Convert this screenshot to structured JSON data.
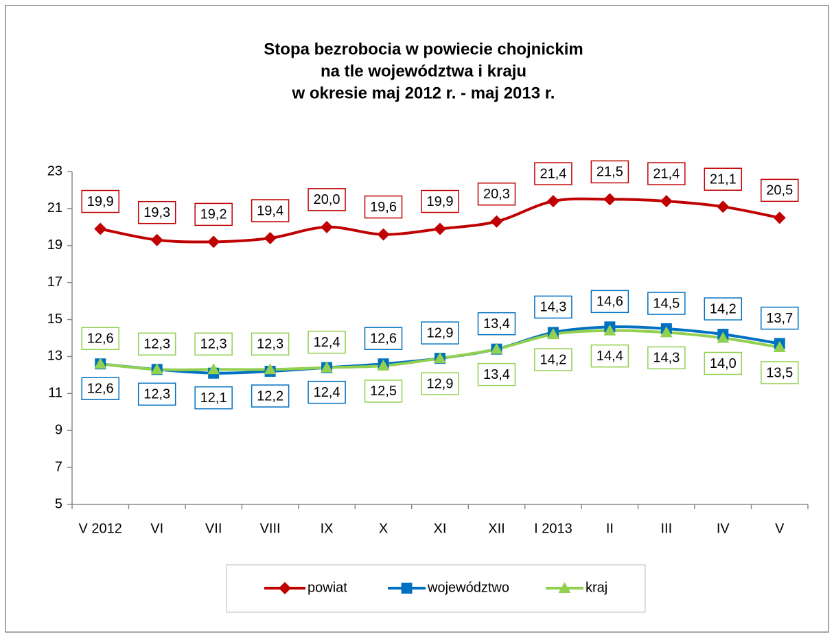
{
  "chart_data": {
    "type": "line",
    "title": [
      "Stopa bezrobocia w powiecie chojnickim",
      "na tle województwa i kraju",
      "w okresie maj 2012 r. - maj 2013 r."
    ],
    "categories": [
      "V 2012",
      "VI",
      "VII",
      "VIII",
      "IX",
      "X",
      "XI",
      "XII",
      "I 2013",
      "II",
      "III",
      "IV",
      "V"
    ],
    "series": [
      {
        "name": "powiat",
        "color": "#c00000",
        "marker": "diamond",
        "values": [
          19.9,
          19.3,
          19.2,
          19.4,
          20.0,
          19.6,
          19.9,
          20.3,
          21.4,
          21.5,
          21.4,
          21.1,
          20.5
        ],
        "value_labels": [
          "19,9",
          "19,3",
          "19,2",
          "19,4",
          "20,0",
          "19,6",
          "19,9",
          "20,3",
          "21,4",
          "21,5",
          "21,4",
          "21,1",
          "20,5"
        ]
      },
      {
        "name": "województwo",
        "color": "#0070c0",
        "marker": "square",
        "values": [
          12.6,
          12.3,
          12.1,
          12.2,
          12.4,
          12.6,
          12.9,
          13.4,
          14.3,
          14.6,
          14.5,
          14.2,
          13.7
        ],
        "value_labels": [
          "12,6",
          "12,3",
          "12,1",
          "12,2",
          "12,4",
          "12,6",
          "12,9",
          "13,4",
          "14,3",
          "14,6",
          "14,5",
          "14,2",
          "13,7"
        ]
      },
      {
        "name": "kraj",
        "color": "#92d050",
        "marker": "triangle",
        "values": [
          12.6,
          12.3,
          12.3,
          12.3,
          12.4,
          12.5,
          12.9,
          13.4,
          14.2,
          14.4,
          14.3,
          14.0,
          13.5
        ],
        "value_labels": [
          "12,6",
          "12,3",
          "12,3",
          "12,3",
          "12,4",
          "12,5",
          "12,9",
          "13,4",
          "14,2",
          "14,4",
          "14,3",
          "14,0",
          "13,5"
        ]
      }
    ],
    "ylim": [
      5,
      23
    ],
    "yticks": [
      5,
      7,
      9,
      11,
      13,
      15,
      17,
      19,
      21,
      23
    ],
    "grid": false,
    "legend": "bottom"
  }
}
